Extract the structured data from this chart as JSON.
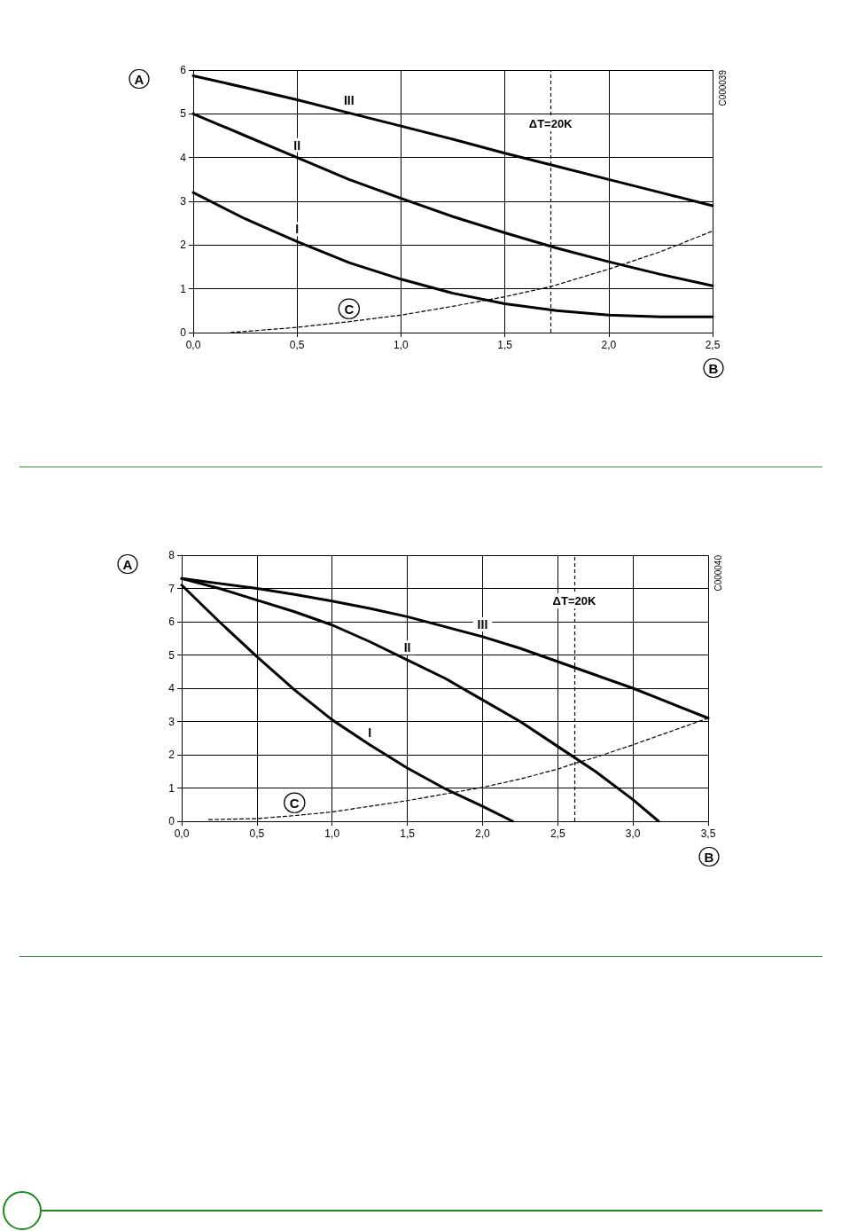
{
  "chart_data": [
    {
      "type": "line",
      "xlabel": "B",
      "ylabel": "A",
      "annotations": [
        "C000039",
        {
          "text": "ΔT=20K",
          "x": 1.72,
          "y": 4.6
        }
      ],
      "xlim": [
        0,
        2.5
      ],
      "ylim": [
        0,
        6
      ],
      "xticks": [
        {
          "value": 0,
          "label": "0,0"
        },
        {
          "value": 0.5,
          "label": "0,5"
        },
        {
          "value": 1,
          "label": "1,0"
        },
        {
          "value": 1.5,
          "label": "1,5"
        },
        {
          "value": 2,
          "label": "2,0"
        },
        {
          "value": 2.5,
          "label": "2,5"
        }
      ],
      "yticks": [
        0,
        1,
        2,
        3,
        4,
        5,
        6
      ],
      "grid": true,
      "marker": "none",
      "ref_lines": [
        {
          "axis": "x",
          "value": 1.72,
          "line_style": "dashed"
        }
      ],
      "series": [
        {
          "name": "III",
          "color": "#000000",
          "x": [
            0,
            0.25,
            0.5,
            0.75,
            1,
            1.25,
            1.5,
            1.75,
            2,
            2.25,
            2.5
          ],
          "values": [
            5.87,
            5.6,
            5.32,
            5.02,
            4.72,
            4.42,
            4.1,
            3.8,
            3.5,
            3.2,
            2.9
          ]
        },
        {
          "name": "II",
          "color": "#000000",
          "x": [
            0,
            0.25,
            0.5,
            0.75,
            1,
            1.25,
            1.5,
            1.75,
            2,
            2.25,
            2.5
          ],
          "values": [
            5.0,
            4.5,
            4.0,
            3.5,
            3.07,
            2.65,
            2.28,
            1.93,
            1.62,
            1.33,
            1.07
          ]
        },
        {
          "name": "I",
          "color": "#000000",
          "x": [
            0,
            0.25,
            0.5,
            0.75,
            1,
            1.25,
            1.5,
            1.75,
            2,
            2.25,
            2.5
          ],
          "values": [
            3.2,
            2.6,
            2.08,
            1.6,
            1.22,
            0.9,
            0.66,
            0.5,
            0.4,
            0.36,
            0.36
          ]
        },
        {
          "name": "C",
          "color": "#000000",
          "line_style": "dashed",
          "x": [
            0.18,
            0.5,
            0.75,
            1,
            1.25,
            1.5,
            1.72,
            2,
            2.25,
            2.5
          ],
          "values": [
            0,
            0.12,
            0.25,
            0.4,
            0.6,
            0.82,
            1.05,
            1.45,
            1.85,
            2.32
          ]
        }
      ]
    },
    {
      "type": "line",
      "xlabel": "B",
      "ylabel": "A",
      "annotations": [
        "C000040",
        {
          "text": "ΔT=20K",
          "x": 2.61,
          "y": 6.4
        }
      ],
      "xlim": [
        0,
        3.5
      ],
      "ylim": [
        0,
        8
      ],
      "xticks": [
        {
          "value": 0,
          "label": "0,0"
        },
        {
          "value": 0.5,
          "label": "0,5"
        },
        {
          "value": 1,
          "label": "1,0"
        },
        {
          "value": 1.5,
          "label": "1,5"
        },
        {
          "value": 2,
          "label": "2,0"
        },
        {
          "value": 2.5,
          "label": "2,5"
        },
        {
          "value": 3,
          "label": "3,0"
        },
        {
          "value": 3.5,
          "label": "3,5"
        }
      ],
      "yticks": [
        0,
        1,
        2,
        3,
        4,
        5,
        6,
        7,
        8
      ],
      "grid": true,
      "marker": "none",
      "ref_lines": [
        {
          "axis": "x",
          "value": 2.61,
          "line_style": "dashed"
        }
      ],
      "series": [
        {
          "name": "III",
          "color": "#000000",
          "x": [
            0,
            0.25,
            0.5,
            0.75,
            1,
            1.25,
            1.5,
            1.75,
            2,
            2.25,
            2.5,
            2.75,
            3,
            3.25,
            3.5
          ],
          "values": [
            7.3,
            7.15,
            7.0,
            6.82,
            6.62,
            6.4,
            6.15,
            5.85,
            5.55,
            5.2,
            4.8,
            4.4,
            4.0,
            3.55,
            3.1
          ]
        },
        {
          "name": "II",
          "color": "#000000",
          "x": [
            0,
            0.25,
            0.5,
            0.75,
            1,
            1.25,
            1.5,
            1.75,
            2,
            2.25,
            2.5,
            2.75,
            3,
            3.17
          ],
          "values": [
            7.3,
            7.0,
            6.65,
            6.3,
            5.9,
            5.4,
            4.85,
            4.3,
            3.65,
            3.0,
            2.25,
            1.5,
            0.65,
            0
          ]
        },
        {
          "name": "I",
          "color": "#000000",
          "x": [
            0,
            0.25,
            0.5,
            0.75,
            1,
            1.25,
            1.5,
            1.75,
            2,
            2.2
          ],
          "values": [
            7.1,
            6.0,
            4.95,
            3.95,
            3.05,
            2.3,
            1.6,
            0.98,
            0.45,
            0
          ]
        },
        {
          "name": "C",
          "color": "#000000",
          "line_style": "dashed",
          "x": [
            0.18,
            0.5,
            0.75,
            1,
            1.25,
            1.5,
            1.75,
            2,
            2.25,
            2.5,
            2.62,
            2.75,
            3,
            3.25,
            3.5
          ],
          "values": [
            0.05,
            0.08,
            0.17,
            0.28,
            0.45,
            0.62,
            0.82,
            1.02,
            1.27,
            1.57,
            1.75,
            1.92,
            2.3,
            2.7,
            3.1
          ]
        }
      ]
    }
  ]
}
